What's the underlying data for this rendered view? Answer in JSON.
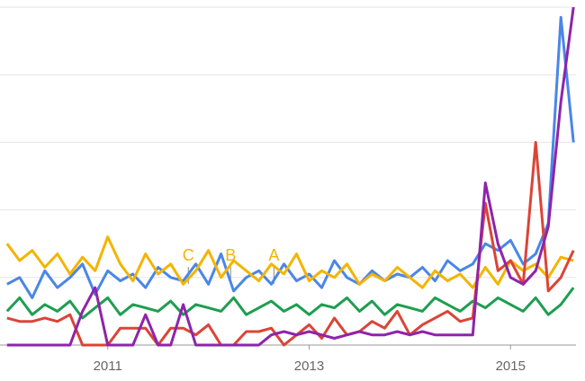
{
  "chart_data": {
    "type": "line",
    "x": [
      2010,
      2010.125,
      2010.25,
      2010.375,
      2010.5,
      2010.625,
      2010.75,
      2010.875,
      2011,
      2011.125,
      2011.25,
      2011.375,
      2011.5,
      2011.625,
      2011.75,
      2011.875,
      2012,
      2012.125,
      2012.25,
      2012.375,
      2012.5,
      2012.625,
      2012.75,
      2012.875,
      2013,
      2013.125,
      2013.25,
      2013.375,
      2013.5,
      2013.625,
      2013.75,
      2013.875,
      2014,
      2014.125,
      2014.25,
      2014.375,
      2014.5,
      2014.625,
      2014.75,
      2014.875,
      2015,
      2015.125,
      2015.25,
      2015.375,
      2015.5,
      2015.625
    ],
    "series": [
      {
        "color": "#4a86e8",
        "values": [
          18,
          20,
          14,
          22,
          17,
          20,
          24,
          15,
          22,
          19,
          21,
          17,
          23,
          20,
          19,
          24,
          18,
          27,
          16,
          20,
          22,
          18,
          24,
          19,
          21,
          17,
          25,
          20,
          18,
          22,
          19,
          21,
          20,
          23,
          19,
          25,
          22,
          24,
          30,
          28,
          31,
          24,
          27,
          36,
          97,
          60
        ]
      },
      {
        "color": "#f4b400",
        "values": [
          30,
          25,
          28,
          23,
          27,
          21,
          26,
          22,
          32,
          24,
          19,
          27,
          21,
          24,
          18,
          22,
          28,
          20,
          25,
          22,
          19,
          24,
          21,
          27,
          19,
          22,
          20,
          24,
          18,
          21,
          19,
          23,
          20,
          17,
          22,
          19,
          21,
          17,
          23,
          18,
          25,
          22,
          24,
          20,
          26,
          25
        ]
      },
      {
        "color": "#1e9e50",
        "values": [
          10,
          14,
          9,
          12,
          10,
          13,
          8,
          11,
          14,
          9,
          12,
          11,
          10,
          13,
          9,
          12,
          11,
          10,
          14,
          9,
          11,
          13,
          10,
          12,
          9,
          12,
          11,
          14,
          10,
          13,
          9,
          12,
          11,
          10,
          14,
          12,
          10,
          13,
          11,
          14,
          12,
          10,
          14,
          9,
          12,
          17
        ]
      },
      {
        "color": "#db4437",
        "values": [
          8,
          7,
          7,
          8,
          7,
          9,
          0,
          0,
          0,
          5,
          5,
          5,
          0,
          5,
          5,
          3,
          6,
          0,
          0,
          4,
          4,
          5,
          0,
          3,
          6,
          2,
          8,
          3,
          4,
          7,
          5,
          10,
          3,
          6,
          8,
          10,
          7,
          8,
          42,
          22,
          25,
          18,
          60,
          16,
          20,
          28
        ]
      },
      {
        "color": "#8e24aa",
        "values": [
          0,
          0,
          0,
          0,
          0,
          0,
          10,
          17,
          0,
          0,
          0,
          9,
          0,
          0,
          12,
          0,
          0,
          0,
          0,
          0,
          0,
          3,
          4,
          3,
          4,
          3,
          2,
          3,
          4,
          3,
          3,
          4,
          3,
          4,
          3,
          3,
          3,
          3,
          48,
          30,
          20,
          18,
          22,
          35,
          72,
          100
        ]
      }
    ],
    "xlim": [
      2009.93,
      2015.65
    ],
    "xticks": [
      2011,
      2013,
      2015
    ],
    "ylim": [
      0,
      100
    ],
    "gridlines": [
      20,
      40,
      60,
      80,
      100
    ],
    "annotations": [
      {
        "label": "C",
        "x": 2011.8
      },
      {
        "label": "B",
        "x": 2012.22
      },
      {
        "label": "A",
        "x": 2012.65
      }
    ]
  }
}
